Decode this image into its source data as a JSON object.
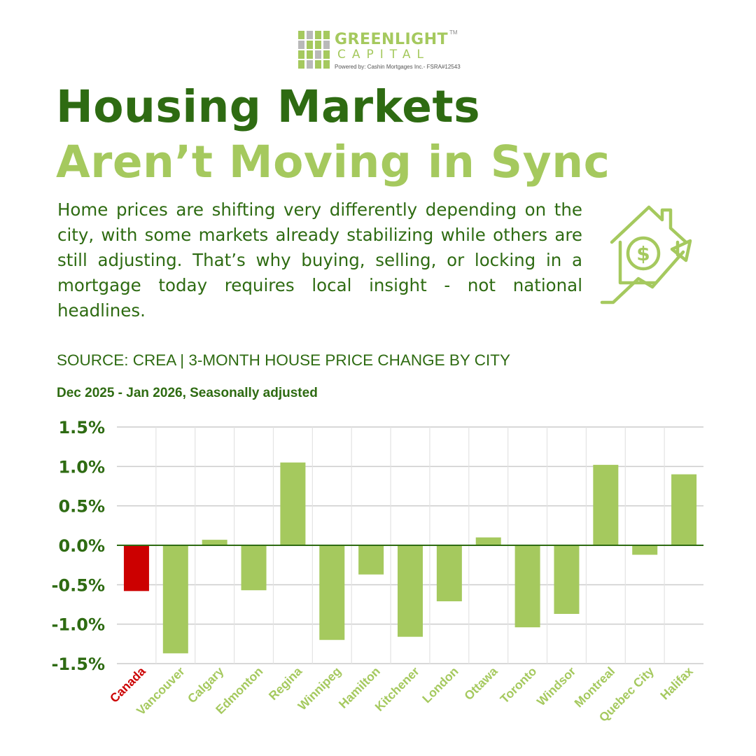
{
  "logo": {
    "name": "GREENLIGHT",
    "trademark": "TM",
    "sub": "CAPITAL",
    "powered_by": "Powered by:  Cashin Mortgages Inc.- FSRA#12543"
  },
  "headline": {
    "line1": "Housing Markets",
    "line2": "Aren’t Moving in Sync"
  },
  "intro": "Home prices are shifting very differently depending on the city, with some markets already stabilizing while others are still adjusting. That’s why buying, selling, or locking in a mortgage today requires local insight - not national headlines.",
  "icon": "house-dollar-trend-up-icon",
  "colors": {
    "dark_green": "#2e6b12",
    "light_green": "#a5c95e",
    "highlight_red": "#cc0000",
    "grid": "#cccccc"
  },
  "chart_data": {
    "type": "bar",
    "title": "SOURCE: CREA | 3-MONTH HOUSE PRICE CHANGE BY CITY",
    "subtitle": "Dec 2025 - Jan 2026, Seasonally adjusted",
    "categories": [
      "Canada",
      "Vancouver",
      "Calgary",
      "Edmonton",
      "Regina",
      "Winnipeg",
      "Hamilton",
      "Kitchener",
      "London",
      "Ottawa",
      "Toronto",
      "Windsor",
      "Montreal",
      "Quebec City",
      "Halifax"
    ],
    "values": [
      -0.58,
      -1.37,
      0.07,
      -0.57,
      1.05,
      -1.2,
      -0.37,
      -1.16,
      -0.71,
      0.1,
      -1.04,
      -0.87,
      1.02,
      -0.12,
      0.9
    ],
    "highlight": "Canada",
    "ylim": [
      -1.5,
      1.5
    ],
    "yticks": [
      1.5,
      1.0,
      0.5,
      0.0,
      -0.5,
      -1.0,
      -1.5
    ],
    "ytick_labels": [
      "1.5%",
      "1.0%",
      "0.5%",
      "0.0%",
      "-0.5%",
      "-1.0%",
      "-1.5%"
    ],
    "grid": true,
    "xlabel": "",
    "ylabel": ""
  }
}
